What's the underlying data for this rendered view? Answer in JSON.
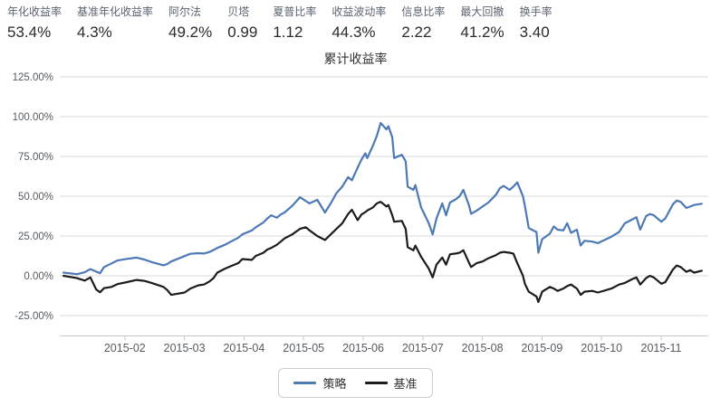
{
  "metrics": [
    {
      "label": "年化收益率",
      "value": "53.4%"
    },
    {
      "label": "基准年化收益率",
      "value": "4.3%"
    },
    {
      "label": "阿尔法",
      "value": "49.2%"
    },
    {
      "label": "贝塔",
      "value": "0.99"
    },
    {
      "label": "夏普比率",
      "value": "1.12"
    },
    {
      "label": "收益波动率",
      "value": "44.3%"
    },
    {
      "label": "信息比率",
      "value": "2.22"
    },
    {
      "label": "最大回撤",
      "value": "41.2%"
    },
    {
      "label": "换手率",
      "value": "3.40"
    }
  ],
  "chart_data": {
    "type": "line",
    "title": "累计收益率",
    "xlabel": "",
    "ylabel": "",
    "grid": true,
    "legend_position": "bottom",
    "colors": {
      "grid_line": "#d9d9d9",
      "axis_line": "#c9c9c9",
      "tick_text": "#555b61"
    },
    "y_axis": {
      "min": -37.5,
      "max": 125,
      "ticks": [
        {
          "value": 125,
          "label": "125.00%"
        },
        {
          "value": 100,
          "label": "100.00%"
        },
        {
          "value": 75,
          "label": "75.00%"
        },
        {
          "value": 50,
          "label": "50.00%"
        },
        {
          "value": 25,
          "label": "25.00%"
        },
        {
          "value": 0,
          "label": "0.00%"
        },
        {
          "value": -25,
          "label": "-25.00%"
        }
      ]
    },
    "x_axis": {
      "ticks": [
        "2015-02",
        "2015-03",
        "2015-04",
        "2015-05",
        "2015-06",
        "2015-07",
        "2015-08",
        "2015-09",
        "2015-10",
        "2015-11"
      ]
    },
    "dates": [
      "2015-01-02",
      "2015-01-09",
      "2015-01-13",
      "2015-01-16",
      "2015-01-19",
      "2015-01-21",
      "2015-01-23",
      "2015-01-27",
      "2015-01-30",
      "2015-02-04",
      "2015-02-09",
      "2015-02-13",
      "2015-02-17",
      "2015-02-23",
      "2015-02-25",
      "2015-02-27",
      "2015-03-03",
      "2015-03-06",
      "2015-03-10",
      "2015-03-13",
      "2015-03-16",
      "2015-03-18",
      "2015-03-20",
      "2015-03-24",
      "2015-03-27",
      "2015-03-31",
      "2015-04-02",
      "2015-04-07",
      "2015-04-09",
      "2015-04-13",
      "2015-04-15",
      "2015-04-17",
      "2015-04-20",
      "2015-04-22",
      "2015-04-24",
      "2015-04-28",
      "2015-05-01",
      "2015-05-04",
      "2015-05-06",
      "2015-05-10",
      "2015-05-14",
      "2015-05-17",
      "2015-05-20",
      "2015-05-23",
      "2015-05-26",
      "2015-05-28",
      "2015-05-31",
      "2015-06-02",
      "2015-06-04",
      "2015-06-05",
      "2015-06-08",
      "2015-06-10",
      "2015-06-12",
      "2015-06-15",
      "2015-06-16",
      "2015-06-18",
      "2015-06-19",
      "2015-06-23",
      "2015-06-25",
      "2015-06-26",
      "2015-06-29",
      "2015-06-30",
      "2015-07-02",
      "2015-07-06",
      "2015-07-08",
      "2015-07-10",
      "2015-07-13",
      "2015-07-15",
      "2015-07-17",
      "2015-07-20",
      "2015-07-22",
      "2015-07-24",
      "2015-07-27",
      "2015-07-28",
      "2015-07-31",
      "2015-08-03",
      "2015-08-06",
      "2015-08-10",
      "2015-08-12",
      "2015-08-14",
      "2015-08-17",
      "2015-08-19",
      "2015-08-21",
      "2015-08-24",
      "2015-08-25",
      "2015-08-27",
      "2015-08-31",
      "2015-09-01",
      "2015-09-03",
      "2015-09-07",
      "2015-09-09",
      "2015-09-11",
      "2015-09-14",
      "2015-09-16",
      "2015-09-18",
      "2015-09-21",
      "2015-09-23",
      "2015-09-25",
      "2015-09-29",
      "2015-10-01",
      "2015-10-08",
      "2015-10-12",
      "2015-10-15",
      "2015-10-19",
      "2015-10-21",
      "2015-10-23",
      "2015-10-26",
      "2015-10-28",
      "2015-10-30",
      "2015-11-03",
      "2015-11-05",
      "2015-11-09",
      "2015-11-11",
      "2015-11-13",
      "2015-11-16",
      "2015-11-18",
      "2015-11-20",
      "2015-11-24"
    ],
    "series": [
      {
        "id": "strategy",
        "name": "策略",
        "color": "#4d79b5",
        "unit": "%",
        "values": [
          2.0,
          1.0,
          2.2,
          4.2,
          2.6,
          1.6,
          5.4,
          7.8,
          9.6,
          10.6,
          11.4,
          10.2,
          8.6,
          6.6,
          7.4,
          9.0,
          12.4,
          13.8,
          14.2,
          14.0,
          15.0,
          16.2,
          17.5,
          19.5,
          21.5,
          24.0,
          26.0,
          28.5,
          30.5,
          33.5,
          36.0,
          38.0,
          36.5,
          38.5,
          39.8,
          44.0,
          49.4,
          47.0,
          45.5,
          47.7,
          39.8,
          45.5,
          52.0,
          56.0,
          62.0,
          60.0,
          68.0,
          73.0,
          77.0,
          74.0,
          82.0,
          88.0,
          96.0,
          92.0,
          94.0,
          87.0,
          74.0,
          76.0,
          72.0,
          56.0,
          54.0,
          57.0,
          43.0,
          33.0,
          26.0,
          36.0,
          45.5,
          38.0,
          46.0,
          48.0,
          50.0,
          54.0,
          44.0,
          39.0,
          41.0,
          43.5,
          46.0,
          51.0,
          55.0,
          56.5,
          54.0,
          56.0,
          58.7,
          50.0,
          44.0,
          30.0,
          27.5,
          14.5,
          23.0,
          26.5,
          31.0,
          29.0,
          28.5,
          33.0,
          27.0,
          29.0,
          19.0,
          22.0,
          21.5,
          20.5,
          24.6,
          27.5,
          33.0,
          35.5,
          36.8,
          29.0,
          37.5,
          38.8,
          38.0,
          34.0,
          36.0,
          45.0,
          47.3,
          46.5,
          42.6,
          43.5,
          44.5,
          45.3
        ]
      },
      {
        "id": "benchmark",
        "name": "基准",
        "color": "#1c1c1c",
        "unit": "%",
        "values": [
          0.0,
          -1.5,
          -3.0,
          -1.0,
          -8.6,
          -10.4,
          -7.8,
          -7.0,
          -5.2,
          -4.0,
          -2.6,
          -3.2,
          -4.6,
          -7.0,
          -9.0,
          -12.0,
          -10.5,
          -8.0,
          -6.0,
          -5.5,
          -3.5,
          -1.5,
          2.0,
          4.5,
          6.0,
          8.0,
          10.5,
          10.0,
          12.5,
          14.5,
          16.5,
          17.5,
          19.5,
          21.5,
          23.5,
          26.0,
          29.5,
          30.5,
          28.5,
          25.0,
          22.5,
          26.0,
          29.5,
          33.0,
          38.8,
          41.5,
          35.0,
          38.5,
          40.0,
          41.0,
          43.0,
          45.5,
          46.5,
          43.5,
          44.5,
          38.0,
          34.0,
          34.5,
          29.5,
          18.0,
          16.0,
          19.0,
          12.0,
          4.5,
          -1.0,
          7.0,
          11.5,
          7.0,
          13.5,
          14.0,
          14.5,
          16.0,
          8.0,
          5.5,
          8.0,
          9.0,
          11.0,
          13.0,
          14.5,
          15.0,
          14.5,
          14.0,
          8.0,
          0.0,
          -5.0,
          -10.0,
          -13.0,
          -16.5,
          -10.0,
          -7.0,
          -8.0,
          -9.5,
          -8.0,
          -6.5,
          -5.5,
          -8.0,
          -12.0,
          -10.0,
          -9.5,
          -10.5,
          -8.0,
          -5.5,
          -4.5,
          -2.0,
          -1.0,
          -5.5,
          -1.5,
          0.0,
          -1.0,
          -5.0,
          -4.0,
          4.0,
          6.5,
          5.5,
          2.5,
          3.5,
          2.0,
          3.2
        ]
      }
    ]
  }
}
